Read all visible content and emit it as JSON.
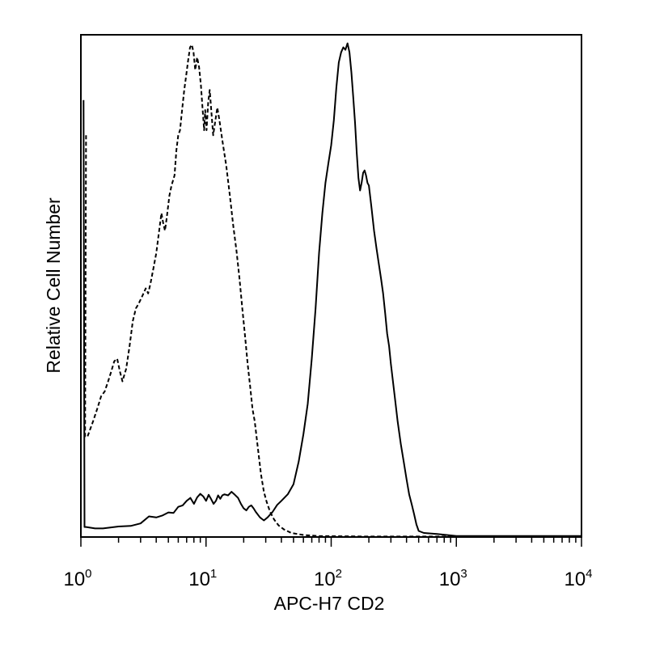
{
  "chart_data": {
    "type": "line",
    "title": "",
    "xlabel": "APC-H7 CD2",
    "ylabel": "Relative Cell Number",
    "x_scale": "log",
    "xlim": [
      1,
      10000
    ],
    "ylim": [
      0,
      100
    ],
    "grid": false,
    "legend": "none",
    "x_ticks": [
      {
        "base": "10",
        "exp": "0",
        "value": 1
      },
      {
        "base": "10",
        "exp": "1",
        "value": 10
      },
      {
        "base": "10",
        "exp": "2",
        "value": 100
      },
      {
        "base": "10",
        "exp": "3",
        "value": 1000
      },
      {
        "base": "10",
        "exp": "4",
        "value": 10000
      }
    ],
    "series": [
      {
        "style": "dashed",
        "color": "#000000",
        "points": [
          [
            1.1,
            80
          ],
          [
            1.08,
            20
          ],
          [
            1.13,
            20
          ],
          [
            1.25,
            23
          ],
          [
            1.35,
            25.5
          ],
          [
            1.45,
            28
          ],
          [
            1.55,
            29
          ],
          [
            1.65,
            31
          ],
          [
            1.75,
            33
          ],
          [
            1.85,
            35
          ],
          [
            1.95,
            35.5
          ],
          [
            2.05,
            33
          ],
          [
            2.15,
            31
          ],
          [
            2.3,
            33.5
          ],
          [
            2.45,
            38
          ],
          [
            2.6,
            43
          ],
          [
            2.75,
            45.5
          ],
          [
            2.9,
            46.5
          ],
          [
            3.1,
            48
          ],
          [
            3.3,
            49.5
          ],
          [
            3.45,
            48.5
          ],
          [
            3.6,
            50.5
          ],
          [
            3.8,
            53.5
          ],
          [
            4.0,
            56.5
          ],
          [
            4.2,
            60.5
          ],
          [
            4.4,
            64.5
          ],
          [
            4.55,
            62.5
          ],
          [
            4.7,
            61
          ],
          [
            4.85,
            63.5
          ],
          [
            5.1,
            68
          ],
          [
            5.3,
            70
          ],
          [
            5.6,
            72
          ],
          [
            5.8,
            77
          ],
          [
            6.0,
            80
          ],
          [
            6.2,
            81
          ],
          [
            6.4,
            84.5
          ],
          [
            6.7,
            89
          ],
          [
            6.95,
            92
          ],
          [
            7.2,
            95
          ],
          [
            7.45,
            97.5
          ],
          [
            7.7,
            98
          ],
          [
            7.95,
            96.5
          ],
          [
            8.2,
            93
          ],
          [
            8.5,
            95.5
          ],
          [
            8.8,
            93.5
          ],
          [
            9.1,
            90
          ],
          [
            9.4,
            85
          ],
          [
            9.65,
            81
          ],
          [
            9.85,
            85
          ],
          [
            10.1,
            81
          ],
          [
            10.4,
            86.5
          ],
          [
            10.7,
            89
          ],
          [
            11.0,
            85
          ],
          [
            11.4,
            80
          ],
          [
            11.8,
            82.5
          ],
          [
            12.3,
            85.5
          ],
          [
            12.8,
            83
          ],
          [
            13.5,
            79
          ],
          [
            14.5,
            74
          ],
          [
            15.5,
            68
          ],
          [
            16.5,
            62
          ],
          [
            17.5,
            57
          ],
          [
            18.5,
            51.5
          ],
          [
            19.5,
            45.5
          ],
          [
            20.5,
            40
          ],
          [
            21.5,
            34.5
          ],
          [
            22.5,
            30
          ],
          [
            23.5,
            25.5
          ],
          [
            24.5,
            23
          ],
          [
            26,
            17.5
          ],
          [
            27.5,
            12.5
          ],
          [
            29,
            9
          ],
          [
            30.5,
            7
          ],
          [
            32.5,
            5
          ],
          [
            35,
            3.5
          ],
          [
            38,
            2.3
          ],
          [
            42,
            1.5
          ],
          [
            48,
            0.8
          ],
          [
            60,
            0.4
          ],
          [
            80,
            0.2
          ],
          [
            200,
            0.1
          ],
          [
            10000,
            0.1
          ]
        ]
      },
      {
        "style": "solid",
        "color": "#000000",
        "points": [
          [
            1.05,
            87
          ],
          [
            1.07,
            2
          ],
          [
            1.1,
            2
          ],
          [
            1.3,
            1.7
          ],
          [
            1.5,
            1.7
          ],
          [
            2.0,
            2.1
          ],
          [
            2.5,
            2.2
          ],
          [
            3.0,
            2.7
          ],
          [
            3.5,
            4.1
          ],
          [
            4.0,
            3.9
          ],
          [
            4.5,
            4.3
          ],
          [
            5.0,
            4.9
          ],
          [
            5.5,
            4.8
          ],
          [
            6.0,
            6.0
          ],
          [
            6.5,
            6.3
          ],
          [
            7.0,
            7.2
          ],
          [
            7.5,
            7.8
          ],
          [
            8.0,
            6.6
          ],
          [
            8.5,
            7.9
          ],
          [
            9.0,
            8.6
          ],
          [
            9.5,
            8.1
          ],
          [
            10.0,
            7.2
          ],
          [
            10.5,
            8.4
          ],
          [
            11.0,
            7.5
          ],
          [
            11.5,
            6.6
          ],
          [
            12.0,
            7.2
          ],
          [
            12.5,
            8.3
          ],
          [
            13.0,
            7.6
          ],
          [
            13.5,
            8.3
          ],
          [
            14.0,
            8.5
          ],
          [
            15.0,
            8.3
          ],
          [
            16.0,
            9.0
          ],
          [
            17.0,
            8.4
          ],
          [
            18.0,
            7.8
          ],
          [
            19.0,
            6.6
          ],
          [
            20.0,
            5.7
          ],
          [
            21.0,
            5.3
          ],
          [
            22.0,
            6.0
          ],
          [
            23.0,
            6.3
          ],
          [
            24.0,
            5.7
          ],
          [
            25.0,
            5.0
          ],
          [
            27.0,
            3.9
          ],
          [
            29.0,
            3.3
          ],
          [
            31.0,
            3.9
          ],
          [
            34.0,
            5.0
          ],
          [
            37.0,
            6.4
          ],
          [
            40.0,
            7.2
          ],
          [
            45.0,
            8.5
          ],
          [
            50.0,
            10.5
          ],
          [
            55.0,
            15.0
          ],
          [
            60.0,
            20.5
          ],
          [
            65.0,
            26.5
          ],
          [
            70.0,
            35.5
          ],
          [
            75.0,
            45.5
          ],
          [
            80.0,
            56.5
          ],
          [
            85.0,
            64.5
          ],
          [
            90.0,
            70.5
          ],
          [
            95.0,
            74.5
          ],
          [
            100.0,
            78.0
          ],
          [
            105.0,
            83.0
          ],
          [
            110.0,
            89.5
          ],
          [
            115.0,
            94.5
          ],
          [
            120.0,
            96.5
          ],
          [
            125.0,
            97.5
          ],
          [
            130.0,
            97.0
          ],
          [
            135.0,
            98.3
          ],
          [
            140.0,
            96.5
          ],
          [
            145.0,
            92.5
          ],
          [
            150.0,
            87.5
          ],
          [
            155.0,
            82.5
          ],
          [
            160.0,
            76.5
          ],
          [
            165.0,
            71.5
          ],
          [
            170.0,
            69.0
          ],
          [
            175.0,
            70.5
          ],
          [
            180.0,
            72.5
          ],
          [
            185.0,
            73.0
          ],
          [
            190.0,
            72.0
          ],
          [
            195.0,
            70.5
          ],
          [
            200.0,
            70.0
          ],
          [
            210.0,
            65.5
          ],
          [
            220.0,
            61.0
          ],
          [
            230.0,
            57.5
          ],
          [
            240.0,
            54.5
          ],
          [
            250.0,
            51.5
          ],
          [
            260.0,
            48.5
          ],
          [
            270.0,
            44.5
          ],
          [
            280.0,
            40.5
          ],
          [
            290.0,
            38.0
          ],
          [
            300.0,
            34.5
          ],
          [
            320.0,
            28.5
          ],
          [
            340.0,
            23.0
          ],
          [
            360.0,
            18.5
          ],
          [
            380.0,
            15.0
          ],
          [
            400.0,
            11.5
          ],
          [
            420.0,
            8.5
          ],
          [
            440.0,
            6.5
          ],
          [
            460.0,
            4.5
          ],
          [
            480.0,
            2.5
          ],
          [
            500.0,
            1.2
          ],
          [
            550.0,
            0.8
          ],
          [
            700.0,
            0.6
          ],
          [
            1000.0,
            0.2
          ],
          [
            10000.0,
            0.2
          ]
        ]
      }
    ]
  }
}
